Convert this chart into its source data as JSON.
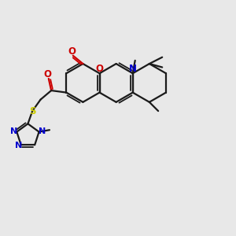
{
  "bg_color": "#e8e8e8",
  "bond_color": "#1a1a1a",
  "o_color": "#cc0000",
  "n_color": "#0000cc",
  "s_color": "#cccc00",
  "figsize": [
    3.0,
    3.0
  ],
  "dpi": 100,
  "xlim": [
    0,
    10
  ],
  "ylim": [
    0,
    10
  ],
  "lw_main": 1.6,
  "lw_inner": 1.3,
  "ring_scale": 0.82
}
